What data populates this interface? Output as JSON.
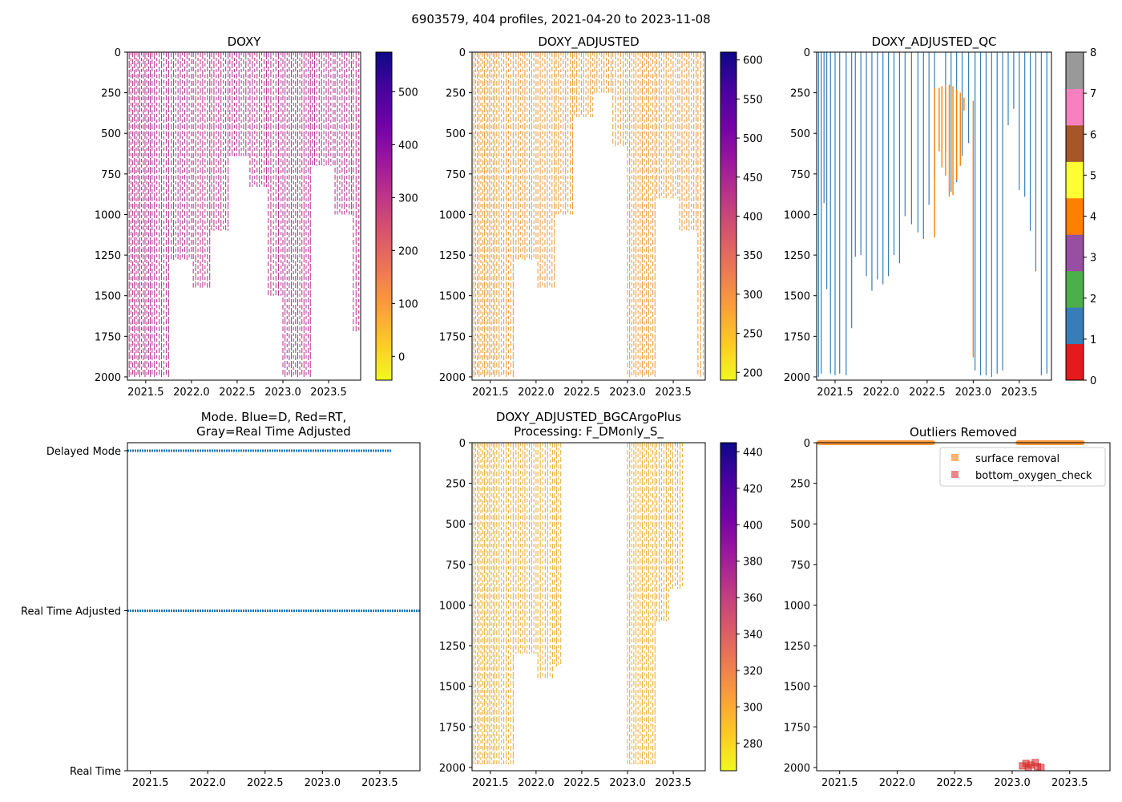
{
  "suptitle": "6903579, 404 profiles, 2021-04-20 to 2023-11-08",
  "chart_data": [
    {
      "id": "doxy",
      "type": "heatmap",
      "title": "DOXY",
      "xlim": [
        2021.3,
        2023.85
      ],
      "xticks": [
        2021.5,
        2022.0,
        2022.5,
        2023.0,
        2023.5
      ],
      "ylim": [
        2020,
        0
      ],
      "yticks": [
        0,
        250,
        500,
        750,
        1000,
        1250,
        1500,
        1750,
        2000
      ],
      "colorbar": {
        "cmap": "plasma_r",
        "range": [
          -45,
          575
        ],
        "ticks": [
          0,
          100,
          200,
          300,
          400,
          500
        ]
      },
      "profile_color": "#b83d95",
      "profiles": [
        {
          "from": 2021.3,
          "to": 2021.55,
          "n": 14,
          "depth": 2000
        },
        {
          "from": 2021.57,
          "to": 2021.75,
          "n": 8,
          "depth": 2000
        },
        {
          "from": 2021.78,
          "to": 2022.0,
          "n": 10,
          "depth": 1280
        },
        {
          "from": 2022.02,
          "to": 2022.2,
          "n": 8,
          "depth": 1450
        },
        {
          "from": 2022.22,
          "to": 2022.4,
          "n": 8,
          "depth": 1100
        },
        {
          "from": 2022.42,
          "to": 2022.62,
          "n": 9,
          "depth": 640
        },
        {
          "from": 2022.64,
          "to": 2022.82,
          "n": 8,
          "depth": 830
        },
        {
          "from": 2022.84,
          "to": 2022.98,
          "n": 6,
          "depth": 1500
        },
        {
          "from": 2023.0,
          "to": 2023.3,
          "n": 14,
          "depth": 2000
        },
        {
          "from": 2023.32,
          "to": 2023.55,
          "n": 10,
          "depth": 700
        },
        {
          "from": 2023.57,
          "to": 2023.75,
          "n": 8,
          "depth": 1000
        },
        {
          "from": 2023.77,
          "to": 2023.83,
          "n": 3,
          "depth": 1720
        }
      ]
    },
    {
      "id": "doxy_adj",
      "type": "heatmap",
      "title": "DOXY_ADJUSTED",
      "xlim": [
        2021.3,
        2023.85
      ],
      "xticks": [
        2021.5,
        2022.0,
        2022.5,
        2023.0,
        2023.5
      ],
      "ylim": [
        2020,
        0
      ],
      "yticks": [
        0,
        250,
        500,
        750,
        1000,
        1250,
        1500,
        1750,
        2000
      ],
      "colorbar": {
        "cmap": "plasma_r",
        "range": [
          190,
          610
        ],
        "ticks": [
          200,
          250,
          300,
          350,
          400,
          450,
          500,
          550,
          600
        ]
      },
      "profile_color": "#eaa145",
      "profiles": [
        {
          "from": 2021.3,
          "to": 2021.55,
          "n": 14,
          "depth": 2000
        },
        {
          "from": 2021.57,
          "to": 2021.75,
          "n": 8,
          "depth": 2000
        },
        {
          "from": 2021.78,
          "to": 2022.0,
          "n": 10,
          "depth": 1280
        },
        {
          "from": 2022.02,
          "to": 2022.2,
          "n": 8,
          "depth": 1450
        },
        {
          "from": 2022.22,
          "to": 2022.4,
          "n": 8,
          "depth": 1000
        },
        {
          "from": 2022.42,
          "to": 2022.62,
          "n": 9,
          "depth": 400
        },
        {
          "from": 2022.64,
          "to": 2022.82,
          "n": 8,
          "depth": 250
        },
        {
          "from": 2022.84,
          "to": 2022.98,
          "n": 6,
          "depth": 580
        },
        {
          "from": 2023.0,
          "to": 2023.3,
          "n": 14,
          "depth": 2000
        },
        {
          "from": 2023.32,
          "to": 2023.55,
          "n": 10,
          "depth": 900
        },
        {
          "from": 2023.57,
          "to": 2023.75,
          "n": 8,
          "depth": 1100
        },
        {
          "from": 2023.77,
          "to": 2023.83,
          "n": 3,
          "depth": 2000
        }
      ]
    },
    {
      "id": "doxy_qc",
      "type": "heatmap",
      "title": "DOXY_ADJUSTED_QC",
      "xlim": [
        2021.3,
        2023.85
      ],
      "xticks": [
        2021.5,
        2022.0,
        2022.5,
        2023.0,
        2023.5
      ],
      "ylim": [
        2020,
        0
      ],
      "yticks": [
        0,
        250,
        500,
        750,
        1000,
        1250,
        1500,
        1750,
        2000
      ],
      "colorbar": {
        "cmap": "Set1",
        "range": [
          0,
          8
        ],
        "ticks": [
          0,
          1,
          2,
          3,
          4,
          5,
          6,
          7,
          8
        ],
        "colors": [
          "#e41a1c",
          "#377eb8",
          "#4daf4a",
          "#984ea3",
          "#ff7f00",
          "#ffff33",
          "#a65628",
          "#f781bf",
          "#999999"
        ]
      },
      "flag1_color": "#377eb8",
      "flag4_color": "#ff7f00",
      "profiles": [
        {
          "x": 2021.32,
          "depth": 2000
        },
        {
          "x": 2021.35,
          "depth": 1980
        },
        {
          "x": 2021.38,
          "depth": 930
        },
        {
          "x": 2021.41,
          "depth": 1460
        },
        {
          "x": 2021.45,
          "depth": 1980
        },
        {
          "x": 2021.5,
          "depth": 1990
        },
        {
          "x": 2021.55,
          "depth": 1980
        },
        {
          "x": 2021.62,
          "depth": 1990
        },
        {
          "x": 2021.68,
          "depth": 1700
        },
        {
          "x": 2021.72,
          "depth": 1260
        },
        {
          "x": 2021.78,
          "depth": 1250
        },
        {
          "x": 2021.84,
          "depth": 1380
        },
        {
          "x": 2021.9,
          "depth": 1470
        },
        {
          "x": 2021.96,
          "depth": 1400
        },
        {
          "x": 2022.02,
          "depth": 1430
        },
        {
          "x": 2022.08,
          "depth": 1380
        },
        {
          "x": 2022.14,
          "depth": 1250
        },
        {
          "x": 2022.2,
          "depth": 1300
        },
        {
          "x": 2022.26,
          "depth": 1010
        },
        {
          "x": 2022.33,
          "depth": 1060
        },
        {
          "x": 2022.4,
          "depth": 1110
        },
        {
          "x": 2022.46,
          "depth": 1150
        },
        {
          "x": 2022.52,
          "depth": 940
        },
        {
          "x": 2022.58,
          "depth": 780
        },
        {
          "x": 2022.7,
          "depth": 620
        },
        {
          "x": 2022.76,
          "depth": 860
        },
        {
          "x": 2022.82,
          "depth": 800
        },
        {
          "x": 2022.88,
          "depth": 640
        },
        {
          "x": 2022.95,
          "depth": 560
        },
        {
          "x": 2023.02,
          "depth": 1960
        },
        {
          "x": 2023.08,
          "depth": 1990
        },
        {
          "x": 2023.14,
          "depth": 1990
        },
        {
          "x": 2023.2,
          "depth": 2000
        },
        {
          "x": 2023.26,
          "depth": 1980
        },
        {
          "x": 2023.32,
          "depth": 1960
        },
        {
          "x": 2023.38,
          "depth": 450
        },
        {
          "x": 2023.44,
          "depth": 350
        },
        {
          "x": 2023.5,
          "depth": 850
        },
        {
          "x": 2023.56,
          "depth": 890
        },
        {
          "x": 2023.62,
          "depth": 1100
        },
        {
          "x": 2023.68,
          "depth": 1350
        },
        {
          "x": 2023.74,
          "depth": 1990
        },
        {
          "x": 2023.8,
          "depth": 1980
        }
      ],
      "flag4_profiles": [
        {
          "x": 2022.58,
          "top": 220,
          "depth": 1140
        },
        {
          "x": 2022.63,
          "top": 220,
          "depth": 610
        },
        {
          "x": 2022.66,
          "top": 210,
          "depth": 710
        },
        {
          "x": 2022.7,
          "top": 200,
          "depth": 760
        },
        {
          "x": 2022.74,
          "top": 200,
          "depth": 890
        },
        {
          "x": 2022.78,
          "top": 210,
          "depth": 880
        },
        {
          "x": 2022.82,
          "top": 230,
          "depth": 790
        },
        {
          "x": 2022.86,
          "top": 250,
          "depth": 700
        },
        {
          "x": 2022.9,
          "top": 280,
          "depth": 360
        },
        {
          "x": 2023.0,
          "top": 300,
          "depth": 1880
        }
      ]
    },
    {
      "id": "mode",
      "type": "scatter",
      "title_line1": "Mode. Blue=D, Red=RT,",
      "title_line2": "Gray=Real Time Adjusted",
      "xlim": [
        2021.3,
        2023.85
      ],
      "xticks": [
        2021.5,
        2022.0,
        2022.5,
        2023.0,
        2023.5
      ],
      "ylim": [
        0,
        2.05
      ],
      "ytick_values": [
        0,
        1,
        2
      ],
      "ytick_labels": [
        "Real Time",
        "Real Time Adjusted",
        "Delayed Mode"
      ],
      "series": [
        {
          "name": "Delayed Mode",
          "y": 2,
          "x_from": 2021.3,
          "x_to": 2023.6,
          "color": "#1f77b4"
        },
        {
          "name": "Real Time Adjusted",
          "y": 1,
          "x_from": 2021.3,
          "x_to": 2023.85,
          "color": "#1f77b4"
        }
      ]
    },
    {
      "id": "bgc",
      "type": "heatmap",
      "title_line1": "DOXY_ADJUSTED_BGCArgoPlus",
      "title_line2": "Processing: F_DMonly_S_",
      "xlim": [
        2021.3,
        2023.85
      ],
      "xticks": [
        2021.5,
        2022.0,
        2022.5,
        2023.0,
        2023.5
      ],
      "ylim": [
        2020,
        0
      ],
      "yticks": [
        0,
        250,
        500,
        750,
        1000,
        1250,
        1500,
        1750,
        2000
      ],
      "colorbar": {
        "cmap": "plasma_r",
        "range": [
          265,
          445
        ],
        "ticks": [
          280,
          300,
          320,
          340,
          360,
          380,
          400,
          420,
          440
        ]
      },
      "profile_color": "#e8b140",
      "profiles": [
        {
          "from": 2021.3,
          "to": 2021.55,
          "n": 14,
          "depth": 1980
        },
        {
          "from": 2021.57,
          "to": 2021.75,
          "n": 8,
          "depth": 1980
        },
        {
          "from": 2021.78,
          "to": 2022.0,
          "n": 10,
          "depth": 1300
        },
        {
          "from": 2022.02,
          "to": 2022.18,
          "n": 7,
          "depth": 1450
        },
        {
          "from": 2022.2,
          "to": 2022.27,
          "n": 4,
          "depth": 1380
        },
        {
          "from": 2023.0,
          "to": 2023.3,
          "n": 14,
          "depth": 1980
        },
        {
          "from": 2023.32,
          "to": 2023.45,
          "n": 6,
          "depth": 1100
        },
        {
          "from": 2023.47,
          "to": 2023.6,
          "n": 6,
          "depth": 900
        }
      ]
    },
    {
      "id": "outliers",
      "type": "scatter",
      "title": "Outliers Removed",
      "xlim": [
        2021.3,
        2023.85
      ],
      "xticks": [
        2021.5,
        2022.0,
        2022.5,
        2023.0,
        2023.5
      ],
      "ylim": [
        2020,
        0
      ],
      "yticks": [
        0,
        250,
        500,
        750,
        1000,
        1250,
        1500,
        1750,
        2000
      ],
      "legend_position": "upper-right",
      "series": [
        {
          "name": "surface removal",
          "color": "#ff7f0e",
          "segments": [
            [
              2021.3,
              2022.33
            ],
            [
              2023.03,
              2023.63
            ]
          ],
          "depth": 0
        },
        {
          "name": "bottom_oxygen_check",
          "color": "#d62728",
          "points": [
            [
              2023.09,
              1990
            ],
            [
              2023.12,
              1975
            ],
            [
              2023.14,
              2000
            ],
            [
              2023.16,
              1985
            ],
            [
              2023.2,
              1970
            ],
            [
              2023.22,
              1995
            ],
            [
              2023.25,
              2000
            ]
          ]
        }
      ]
    }
  ]
}
